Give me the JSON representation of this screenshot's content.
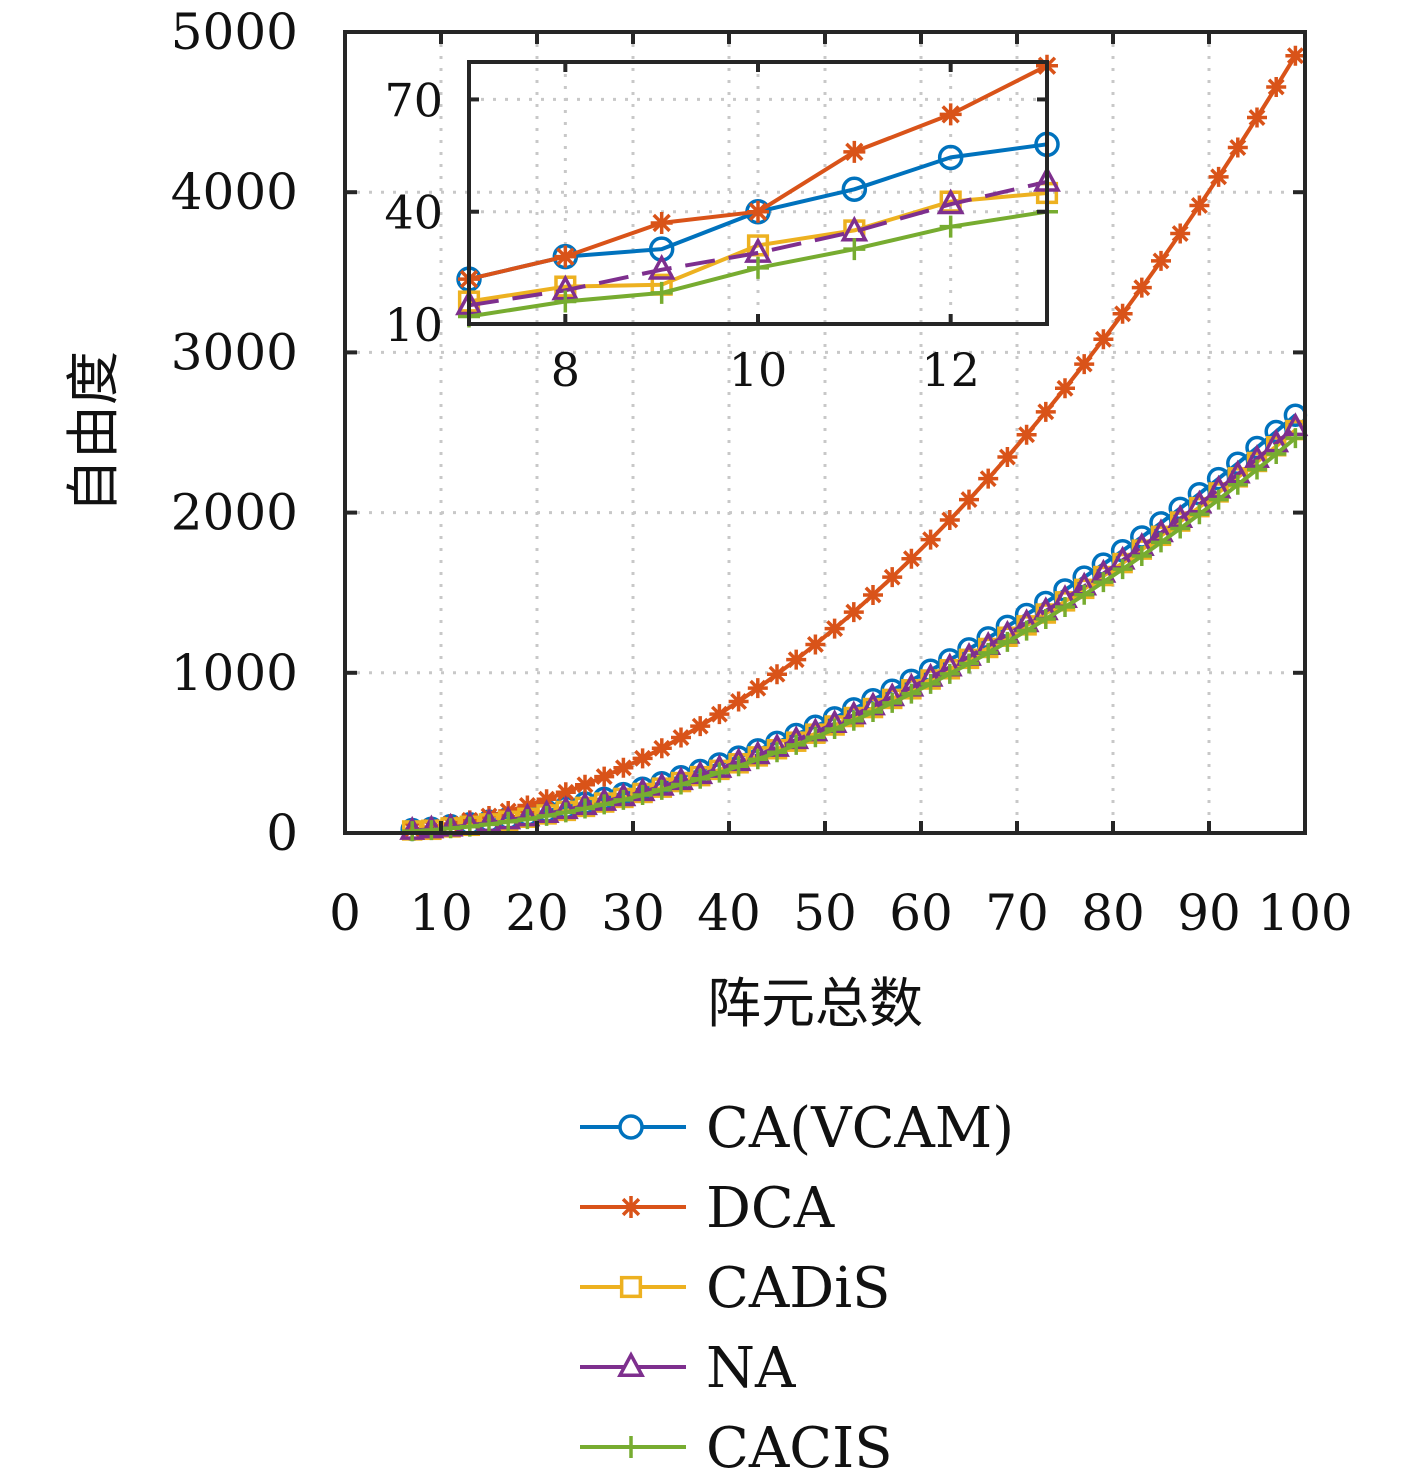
{
  "chart_data": {
    "type": "line",
    "title": "",
    "xlabel": "阵元总数",
    "ylabel": "自由度",
    "xlim": [
      0,
      100
    ],
    "ylim": [
      0,
      5000
    ],
    "xticks": [
      0,
      10,
      20,
      30,
      40,
      50,
      60,
      70,
      80,
      90,
      100
    ],
    "yticks": [
      0,
      1000,
      2000,
      3000,
      4000,
      5000
    ],
    "grid": true,
    "legend_position": "bottom-outside",
    "x": [
      7,
      9,
      11,
      13,
      15,
      17,
      19,
      21,
      23,
      25,
      27,
      29,
      31,
      33,
      35,
      37,
      39,
      41,
      43,
      45,
      47,
      49,
      51,
      53,
      55,
      57,
      59,
      61,
      63,
      65,
      67,
      69,
      71,
      73,
      75,
      77,
      79,
      81,
      83,
      85,
      87,
      89,
      91,
      93,
      95,
      97,
      99
    ],
    "series": [
      {
        "name": "CA(VCAM)",
        "color": "#0072BD",
        "marker": "circle",
        "line": "solid",
        "values": [
          22,
          30,
          46,
          58,
          74,
          92,
          113,
          136,
          160,
          187,
          216,
          246,
          279,
          314,
          351,
          390,
          431,
          474,
          519,
          566,
          615,
          666,
          719,
          775,
          832,
          891,
          953,
          1016,
          1081,
          1149,
          1218,
          1290,
          1364,
          1439,
          1517,
          1597,
          1678,
          1762,
          1848,
          1936,
          2026,
          2118,
          2212,
          2308,
          2406,
          2506,
          2608
        ]
      },
      {
        "name": "DCA",
        "color": "#D95319",
        "marker": "asterisk",
        "line": "solid",
        "values": [
          22,
          37,
          56,
          79,
          106,
          137,
          172,
          211,
          254,
          301,
          352,
          407,
          466,
          529,
          596,
          667,
          742,
          821,
          904,
          991,
          1082,
          1177,
          1276,
          1379,
          1486,
          1597,
          1712,
          1831,
          1954,
          2081,
          2212,
          2347,
          2486,
          2629,
          2776,
          2927,
          3082,
          3241,
          3404,
          3571,
          3742,
          3917,
          4096,
          4279,
          4466,
          4657,
          4852
        ]
      },
      {
        "name": "CADiS",
        "color": "#EDB120",
        "marker": "square",
        "line": "solid",
        "values": [
          16,
          20,
          35,
          45,
          60,
          76,
          95,
          116,
          138,
          163,
          190,
          219,
          250,
          283,
          318,
          355,
          394,
          435,
          478,
          523,
          570,
          620,
          671,
          724,
          780,
          837,
          897,
          958,
          1022,
          1087,
          1155,
          1225,
          1296,
          1370,
          1446,
          1524,
          1604,
          1685,
          1769,
          1855,
          1944,
          2034,
          2126,
          2220,
          2316,
          2414,
          2515
        ]
      },
      {
        "name": "NA",
        "color": "#7E2F8E",
        "marker": "triangle",
        "line": "dashed",
        "values": [
          15,
          24,
          35,
          48,
          63,
          80,
          99,
          120,
          144,
          169,
          196,
          225,
          257,
          290,
          325,
          363,
          402,
          444,
          487,
          533,
          581,
          630,
          682,
          736,
          792,
          849,
          909,
          971,
          1035,
          1101,
          1169,
          1239,
          1311,
          1386,
          1462,
          1540,
          1620,
          1702,
          1787,
          1873,
          1962,
          2052,
          2145,
          2239,
          2336,
          2434,
          2535
        ]
      },
      {
        "name": "CACIS",
        "color": "#77AC30",
        "marker": "plus",
        "line": "solid",
        "values": [
          12,
          18,
          30,
          40,
          54,
          70,
          87,
          107,
          129,
          153,
          179,
          207,
          237,
          269,
          303,
          339,
          377,
          417,
          460,
          504,
          550,
          598,
          649,
          701,
          755,
          812,
          870,
          931,
          993,
          1058,
          1124,
          1193,
          1263,
          1336,
          1411,
          1487,
          1566,
          1647,
          1729,
          1814,
          1901,
          1990,
          2081,
          2174,
          2269,
          2366,
          2465
        ]
      }
    ],
    "inset": {
      "xlim": [
        7,
        13
      ],
      "ylim": [
        10,
        80
      ],
      "xticks": [
        8,
        10,
        12
      ],
      "yticks": [
        10,
        40,
        70
      ],
      "x": [
        7,
        8,
        9,
        10,
        11,
        12,
        13
      ],
      "series": [
        {
          "name": "CA(VCAM)",
          "values": [
            22,
            28,
            30,
            40,
            46,
            54.5,
            58
          ]
        },
        {
          "name": "DCA",
          "values": [
            22,
            28,
            37,
            40,
            56,
            66,
            79
          ]
        },
        {
          "name": "CADiS",
          "values": [
            16,
            20,
            20.5,
            31,
            35,
            42.7,
            45
          ]
        },
        {
          "name": "NA",
          "values": [
            15,
            19,
            24.5,
            29,
            34.7,
            42,
            48
          ]
        },
        {
          "name": "CACIS",
          "values": [
            12,
            16,
            18.3,
            25,
            30,
            36,
            40
          ]
        }
      ]
    }
  }
}
